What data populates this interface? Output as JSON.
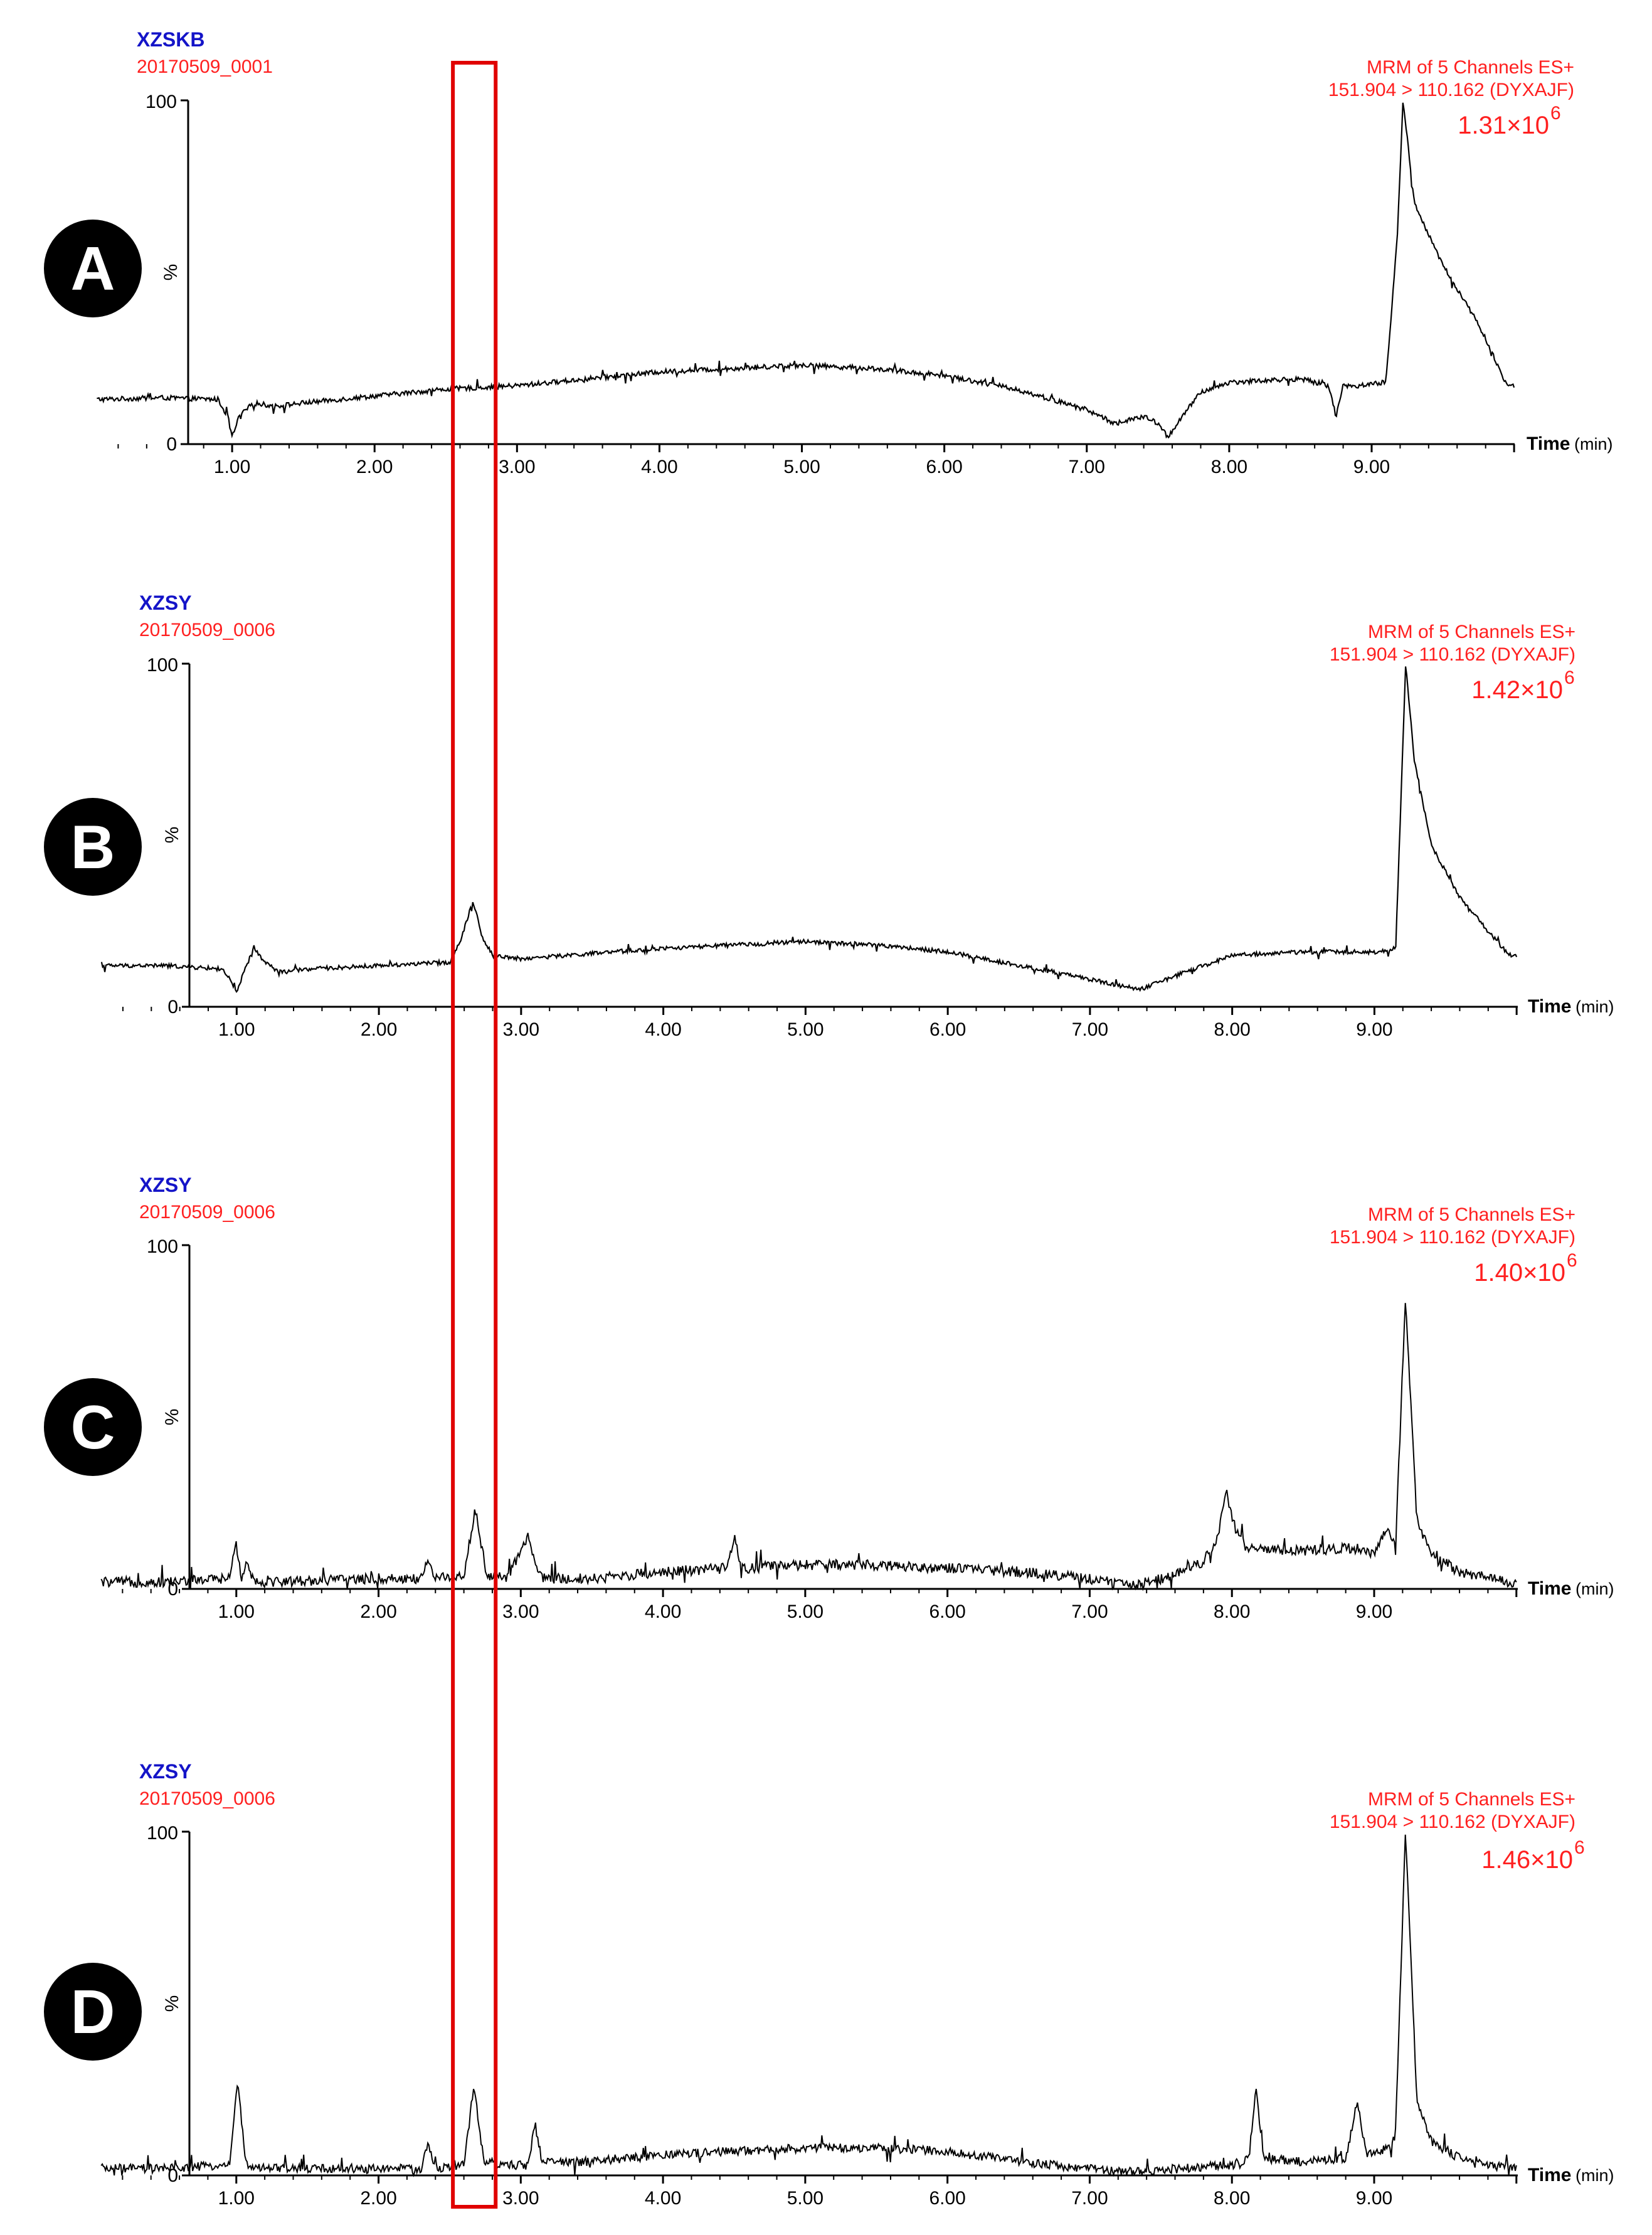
{
  "chart_data": [
    {
      "type": "line",
      "panel": "A",
      "sample": "XZSKB",
      "run": "20170509_0001",
      "channel_line1": "MRM of 5 Channels ES+",
      "channel_line2": "151.904 > 110.162 (DYXAJF)",
      "intensity_mantissa": "1.31×10",
      "intensity_exponent": "6",
      "xlabel": "Time",
      "xunit": "(min)",
      "ylabel": "%",
      "yticks": [
        "0",
        "100"
      ],
      "xticks": [
        "1.00",
        "2.00",
        "3.00",
        "4.00",
        "5.00",
        "6.00",
        "7.00",
        "8.00",
        "9.00"
      ],
      "xlim": [
        0.05,
        10.0
      ],
      "ylim": [
        0,
        100
      ],
      "noise": 0.7,
      "x": [
        0.05,
        0.5,
        0.9,
        0.97,
        1.0,
        1.05,
        1.15,
        1.3,
        1.5,
        2.0,
        2.5,
        3.0,
        3.5,
        4.0,
        4.5,
        5.0,
        5.5,
        6.0,
        6.5,
        7.0,
        7.2,
        7.4,
        7.5,
        7.57,
        7.65,
        7.8,
        8.0,
        8.5,
        8.7,
        8.75,
        8.8,
        8.9,
        9.1,
        9.18,
        9.22,
        9.3,
        9.5,
        9.75,
        9.95
      ],
      "y": [
        13,
        13.5,
        13,
        8,
        2,
        8,
        12,
        11,
        12,
        14,
        16,
        17,
        19,
        21,
        22,
        23,
        22,
        20,
        16,
        10,
        6,
        8,
        6,
        2,
        7,
        15,
        18,
        19,
        17,
        8,
        17,
        17,
        18,
        60,
        100,
        70,
        52,
        35,
        17
      ]
    },
    {
      "type": "line",
      "panel": "B",
      "sample": "XZSY",
      "run": "20170509_0006",
      "channel_line1": "MRM of 5 Channels ES+",
      "channel_line2": "151.904 > 110.162 (DYXAJF)",
      "intensity_mantissa": "1.42×10",
      "intensity_exponent": "6",
      "xlabel": "Time",
      "xunit": "(min)",
      "ylabel": "%",
      "yticks": [
        "0",
        "100"
      ],
      "xticks": [
        "1.00",
        "2.00",
        "3.00",
        "4.00",
        "5.00",
        "6.00",
        "7.00",
        "8.00",
        "9.00"
      ],
      "xlim": [
        0.05,
        10.0
      ],
      "ylim": [
        0,
        100
      ],
      "noise": 0.6,
      "x": [
        0.05,
        0.5,
        0.9,
        0.95,
        1.0,
        1.05,
        1.12,
        1.2,
        1.3,
        1.5,
        2.0,
        2.5,
        2.58,
        2.66,
        2.73,
        2.8,
        3.0,
        4.0,
        5.0,
        5.5,
        6.0,
        6.5,
        7.0,
        7.35,
        7.6,
        8.0,
        8.5,
        9.0,
        9.15,
        9.22,
        9.28,
        9.4,
        9.6,
        9.8,
        9.95
      ],
      "y": [
        12,
        12,
        11,
        8,
        4,
        10,
        17,
        13,
        10,
        11,
        12,
        13,
        20,
        31,
        20,
        15,
        14,
        17,
        19,
        18,
        16,
        12,
        8,
        5,
        9,
        15,
        16,
        16,
        17,
        100,
        72,
        47,
        32,
        22,
        15
      ]
    },
    {
      "type": "line",
      "panel": "C",
      "sample": "XZSY",
      "run": "20170509_0006",
      "channel_line1": "MRM of 5 Channels ES+",
      "channel_line2": "151.904 > 110.162 (DYXAJF)",
      "intensity_mantissa": "1.40×10",
      "intensity_exponent": "6",
      "xlabel": "Time",
      "xunit": "(min)",
      "ylabel": "%",
      "yticks": [
        "0",
        "100"
      ],
      "xticks": [
        "1.00",
        "2.00",
        "3.00",
        "4.00",
        "5.00",
        "6.00",
        "7.00",
        "8.00",
        "9.00"
      ],
      "xlim": [
        0.05,
        10.0
      ],
      "ylim": [
        0,
        100
      ],
      "noise": 1.5,
      "x": [
        0.05,
        0.5,
        0.95,
        1.0,
        1.04,
        1.08,
        1.1,
        1.15,
        2.0,
        2.3,
        2.35,
        2.4,
        2.6,
        2.68,
        2.76,
        2.9,
        3.05,
        3.1,
        3.15,
        3.5,
        4.0,
        4.45,
        4.5,
        4.55,
        5.0,
        5.5,
        6.0,
        6.5,
        7.0,
        7.3,
        7.5,
        7.8,
        7.9,
        7.96,
        8.02,
        8.1,
        8.5,
        8.8,
        9.0,
        9.1,
        9.15,
        9.22,
        9.3,
        9.4,
        9.6,
        9.95
      ],
      "y": [
        2,
        2,
        3,
        13,
        3,
        9,
        4,
        2,
        3,
        3,
        9,
        3,
        4,
        23,
        4,
        3,
        15,
        8,
        3,
        3,
        5,
        6,
        15,
        6,
        7,
        7,
        6,
        5,
        3,
        1,
        3,
        8,
        15,
        28,
        18,
        12,
        11,
        12,
        10,
        18,
        12,
        85,
        20,
        10,
        5,
        2
      ]
    },
    {
      "type": "line",
      "panel": "D",
      "sample": "XZSY",
      "run": "20170509_0006",
      "channel_line1": "MRM of 5 Channels ES+",
      "channel_line2": "151.904 > 110.162 (DYXAJF)",
      "intensity_mantissa": "1.46×10",
      "intensity_exponent": "6",
      "xlabel": "Time",
      "xunit": "(min)",
      "ylabel": "%",
      "yticks": [
        "0",
        "100"
      ],
      "xticks": [
        "1.00",
        "2.00",
        "3.00",
        "4.00",
        "5.00",
        "6.00",
        "7.00",
        "8.00",
        "9.00"
      ],
      "xlim": [
        0.05,
        10.0
      ],
      "ylim": [
        0,
        100
      ],
      "noise": 1.3,
      "x": [
        0.05,
        0.5,
        0.95,
        1.01,
        1.07,
        1.15,
        2.0,
        2.3,
        2.35,
        2.4,
        2.6,
        2.67,
        2.74,
        2.9,
        3.05,
        3.1,
        3.15,
        3.5,
        4.0,
        4.5,
        5.0,
        5.5,
        6.0,
        6.5,
        7.0,
        7.3,
        7.6,
        8.0,
        8.12,
        8.17,
        8.22,
        8.5,
        8.8,
        8.88,
        8.95,
        9.1,
        9.15,
        9.22,
        9.3,
        9.4,
        9.6,
        9.95
      ],
      "y": [
        2,
        2,
        3,
        27,
        3,
        2,
        2,
        2,
        9,
        2,
        3,
        26,
        4,
        3,
        3,
        15,
        4,
        4,
        6,
        7,
        8,
        8,
        7,
        4,
        2,
        1,
        2,
        3,
        5,
        26,
        5,
        4,
        5,
        21,
        6,
        8,
        12,
        100,
        22,
        10,
        5,
        2
      ]
    }
  ],
  "panel_labels": [
    "A",
    "B",
    "C",
    "D"
  ],
  "highlight": {
    "x_range": [
      2.55,
      2.85
    ],
    "color": "#e00000"
  }
}
